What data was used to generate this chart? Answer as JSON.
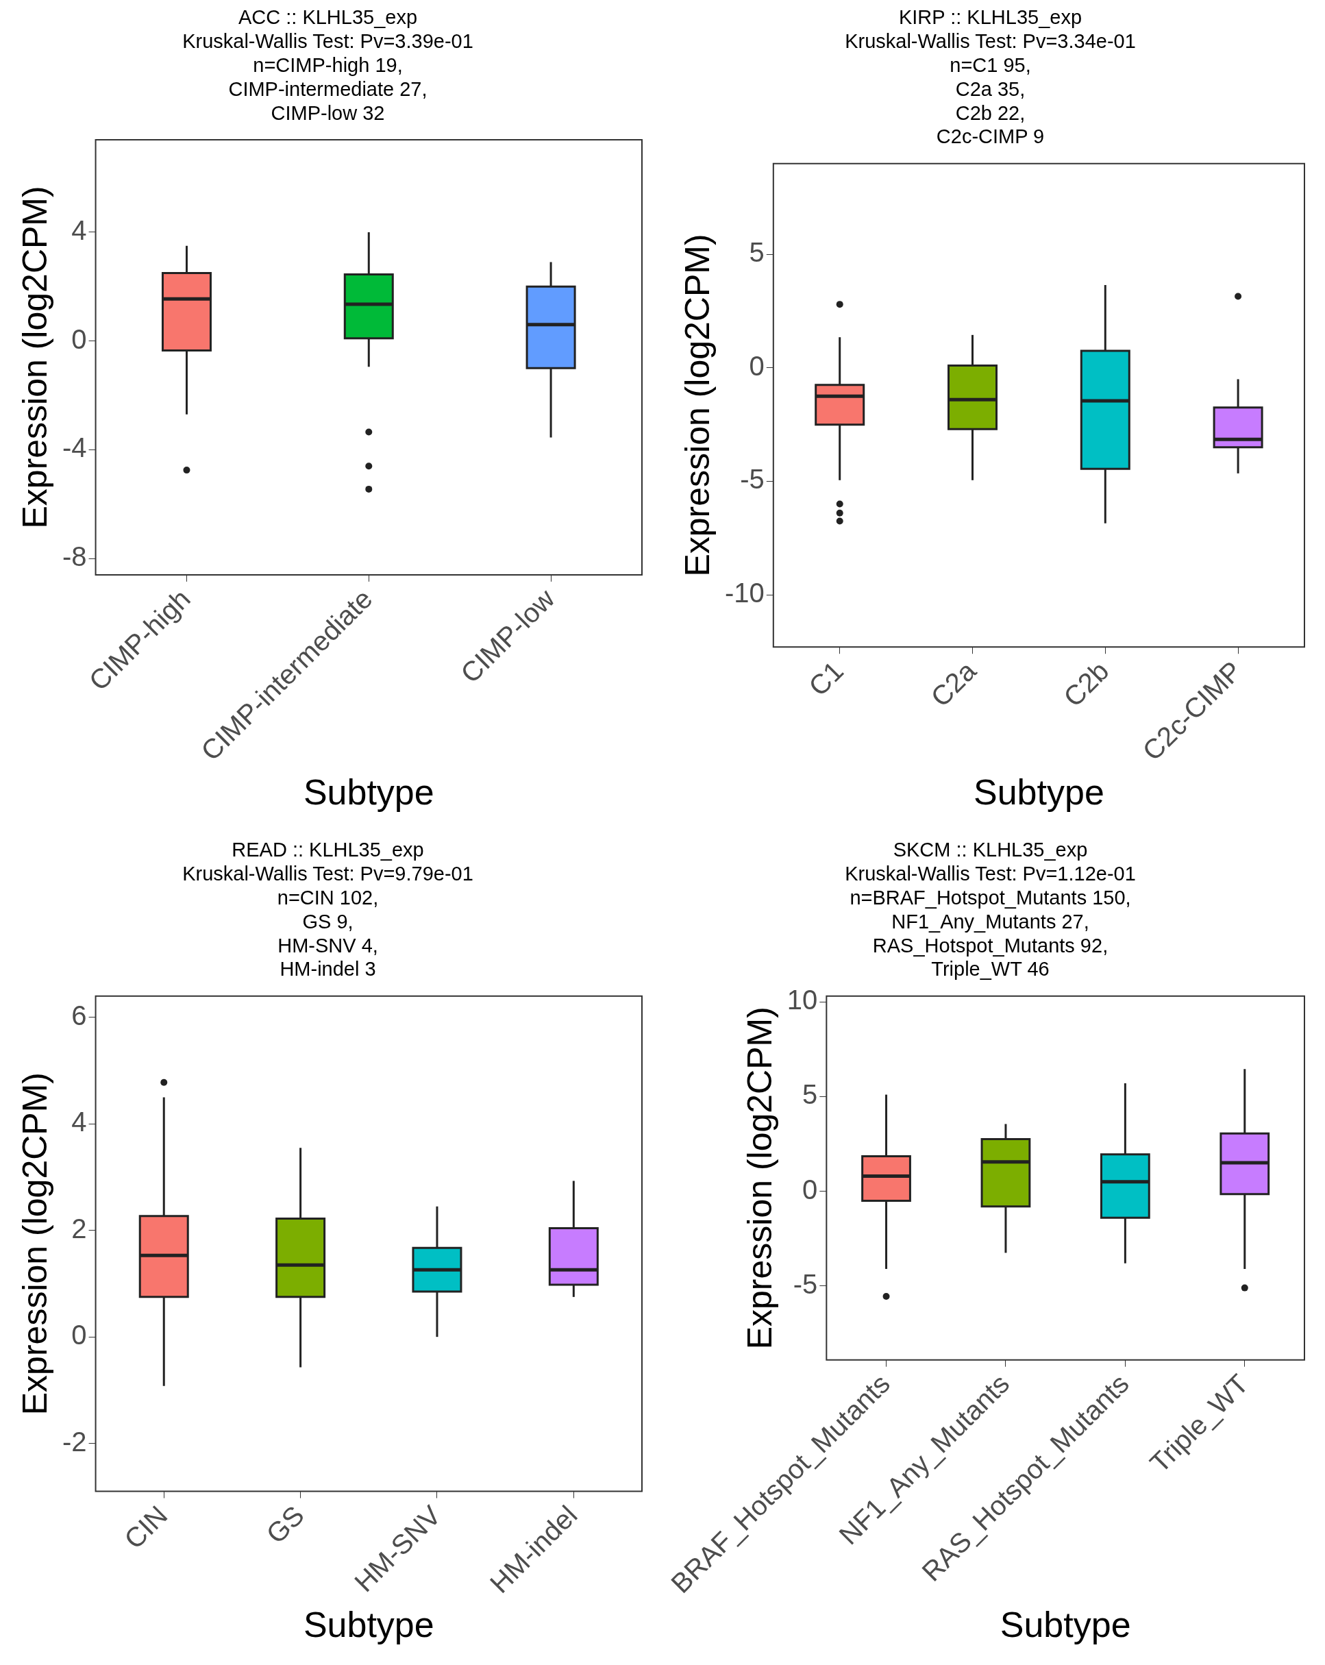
{
  "chart_data": [
    {
      "type": "box",
      "title": "ACC :: KLHL35_exp\nKruskal-Wallis Test: Pv=3.39e-01\nn=CIMP-high 19,\nCIMP-intermediate 27,\nCIMP-low 32",
      "xlabel": "Subtype",
      "ylabel": "Expression (log2CPM)",
      "categories": [
        "CIMP-high",
        "CIMP-intermediate",
        "CIMP-low"
      ],
      "colors": [
        "#f8766d",
        "#00ba38",
        "#619cff"
      ],
      "ylim": [
        -8.6,
        7.4
      ],
      "yticks": [
        -8,
        -4,
        0,
        4
      ],
      "boxes": [
        {
          "low": -2.7,
          "q1": -0.35,
          "median": 1.55,
          "q3": 2.5,
          "high": 3.5,
          "outliers": [
            -4.75
          ]
        },
        {
          "low": -0.95,
          "q1": 0.1,
          "median": 1.35,
          "q3": 2.45,
          "high": 4.0,
          "outliers": [
            -3.35,
            -4.6,
            -5.45
          ]
        },
        {
          "low": -3.55,
          "q1": -1.0,
          "median": 0.6,
          "q3": 2.0,
          "high": 2.9
        }
      ]
    },
    {
      "type": "box",
      "title": "KIRP :: KLHL35_exp\nKruskal-Wallis Test: Pv=3.34e-01\nn=C1 95,\nC2a 35,\nC2b 22,\nC2c-CIMP 9",
      "xlabel": "Subtype",
      "ylabel": "Expression (log2CPM)",
      "categories": [
        "C1",
        "C2a",
        "C2b",
        "C2c-CIMP"
      ],
      "colors": [
        "#f8766d",
        "#7cae00",
        "#00bfc4",
        "#c77cff"
      ],
      "ylim": [
        -12.3,
        9
      ],
      "yticks": [
        -10,
        -5,
        0,
        5
      ],
      "boxes": [
        {
          "low": -4.95,
          "q1": -2.5,
          "median": -1.25,
          "q3": -0.75,
          "high": 1.35,
          "outliers": [
            2.8,
            -6.0,
            -6.4,
            -6.75
          ]
        },
        {
          "low": -4.95,
          "q1": -2.7,
          "median": -1.4,
          "q3": 0.1,
          "high": 1.45
        },
        {
          "low": -6.85,
          "q1": -4.45,
          "median": -1.45,
          "q3": 0.75,
          "high": 3.65
        },
        {
          "low": -4.65,
          "q1": -3.5,
          "median": -3.15,
          "q3": -1.75,
          "high": -0.5,
          "outliers": [
            3.15
          ]
        }
      ]
    },
    {
      "type": "box",
      "title": "READ :: KLHL35_exp\nKruskal-Wallis Test: Pv=9.79e-01\nn=CIN 102,\nGS 9,\nHM-SNV 4,\nHM-indel 3",
      "xlabel": "Subtype",
      "ylabel": "Expression (log2CPM)",
      "categories": [
        "CIN",
        "GS",
        "HM-SNV",
        "HM-indel"
      ],
      "colors": [
        "#f8766d",
        "#7cae00",
        "#00bfc4",
        "#c77cff"
      ],
      "ylim": [
        -2.9,
        6.4
      ],
      "yticks": [
        -2,
        0,
        2,
        4,
        6
      ],
      "boxes": [
        {
          "low": -0.92,
          "q1": 0.75,
          "median": 1.53,
          "q3": 2.27,
          "high": 4.5,
          "outliers": [
            4.78
          ]
        },
        {
          "low": -0.57,
          "q1": 0.75,
          "median": 1.35,
          "q3": 2.22,
          "high": 3.55
        },
        {
          "low": 0.0,
          "q1": 0.85,
          "median": 1.26,
          "q3": 1.67,
          "high": 2.45
        },
        {
          "low": 0.75,
          "q1": 0.98,
          "median": 1.26,
          "q3": 2.04,
          "high": 2.93
        }
      ]
    },
    {
      "type": "box",
      "title": "SKCM :: KLHL35_exp\nKruskal-Wallis Test: Pv=1.12e-01\nn=BRAF_Hotspot_Mutants 150,\nNF1_Any_Mutants 27,\nRAS_Hotspot_Mutants 92,\nTriple_WT 46",
      "xlabel": "Subtype",
      "ylabel": "Expression (log2CPM)",
      "categories": [
        "BRAF_Hotspot_Mutants",
        "NF1_Any_Mutants",
        "RAS_Hotspot_Mutants",
        "Triple_WT"
      ],
      "colors": [
        "#f8766d",
        "#7cae00",
        "#00bfc4",
        "#c77cff"
      ],
      "ylim": [
        -8.9,
        10.3
      ],
      "yticks": [
        -5,
        0,
        5,
        10
      ],
      "boxes": [
        {
          "low": -4.1,
          "q1": -0.5,
          "median": 0.8,
          "q3": 1.85,
          "high": 5.1,
          "outliers": [
            -5.55
          ]
        },
        {
          "low": -3.25,
          "q1": -0.8,
          "median": 1.55,
          "q3": 2.75,
          "high": 3.55
        },
        {
          "low": -3.8,
          "q1": -1.4,
          "median": 0.5,
          "q3": 1.95,
          "high": 5.7
        },
        {
          "low": -4.1,
          "q1": -0.15,
          "median": 1.5,
          "q3": 3.05,
          "high": 6.45,
          "outliers": [
            -5.1
          ]
        }
      ]
    }
  ]
}
